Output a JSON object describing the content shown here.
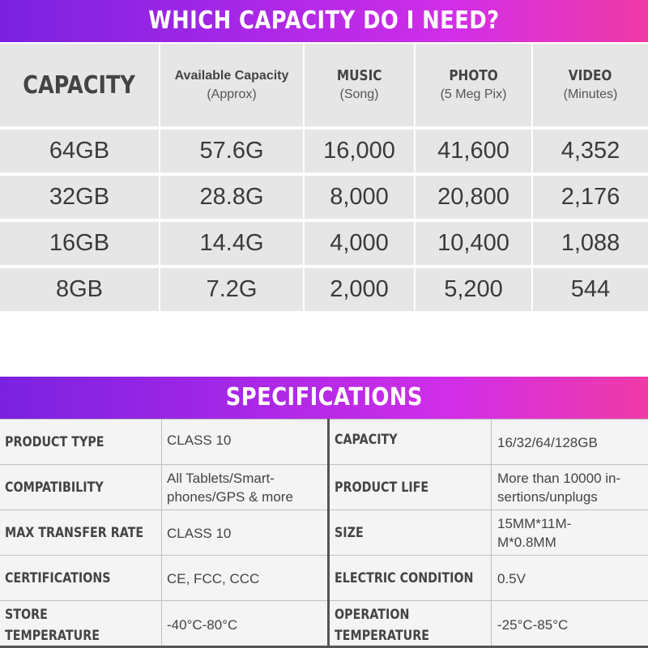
{
  "capacity_section": {
    "title": "WHICH CAPACITY DO I NEED?",
    "headers": {
      "capacity": "CAPACITY",
      "available_title": "Available Capacity",
      "available_sub": "(Approx)",
      "music_title": "MUSIC",
      "music_sub": "(Song)",
      "photo_title": "PHOTO",
      "photo_sub": "(5 Meg Pix)",
      "video_title": "VIDEO",
      "video_sub": "(Minutes)"
    },
    "rows": [
      {
        "capacity": "64GB",
        "available": "57.6G",
        "music": "16,000",
        "photo": "41,600",
        "video": "4,352"
      },
      {
        "capacity": "32GB",
        "available": "28.8G",
        "music": "8,000",
        "photo": "20,800",
        "video": "2,176"
      },
      {
        "capacity": "16GB",
        "available": "14.4G",
        "music": "4,000",
        "photo": "10,400",
        "video": "1,088"
      },
      {
        "capacity": "8GB",
        "available": "7.2G",
        "music": "2,000",
        "photo": "5,200",
        "video": "544"
      }
    ]
  },
  "specifications": {
    "title": "SPECIFICATIONS",
    "rows": [
      {
        "label1": "PRODUCT TYPE",
        "value1": "CLASS 10",
        "label2": "CAPACITY",
        "value2": "16/32/64/128GB"
      },
      {
        "label1": "COMPATIBILITY",
        "value1": "All Tablets/Smart-\nphones/GPS & more",
        "label2": "PRODUCT LIFE",
        "value2": "More than 10000 in-\nsertions/unplugs"
      },
      {
        "label1": "MAX TRANSFER RATE",
        "value1": "CLASS 10",
        "label2": "SIZE",
        "value2": "15MM*11M-\nM*0.8MM"
      },
      {
        "label1": "CERTIFICATIONS",
        "value1": "CE, FCC, CCC",
        "label2": "ELECTRIC CONDITION",
        "value2": "0.5V"
      },
      {
        "label1": "STORE\nTEMPERATURE",
        "value1": "-40°C-80°C",
        "label2": "OPERATION\nTEMPERATURE",
        "value2": "-25°C-85°C"
      }
    ]
  }
}
